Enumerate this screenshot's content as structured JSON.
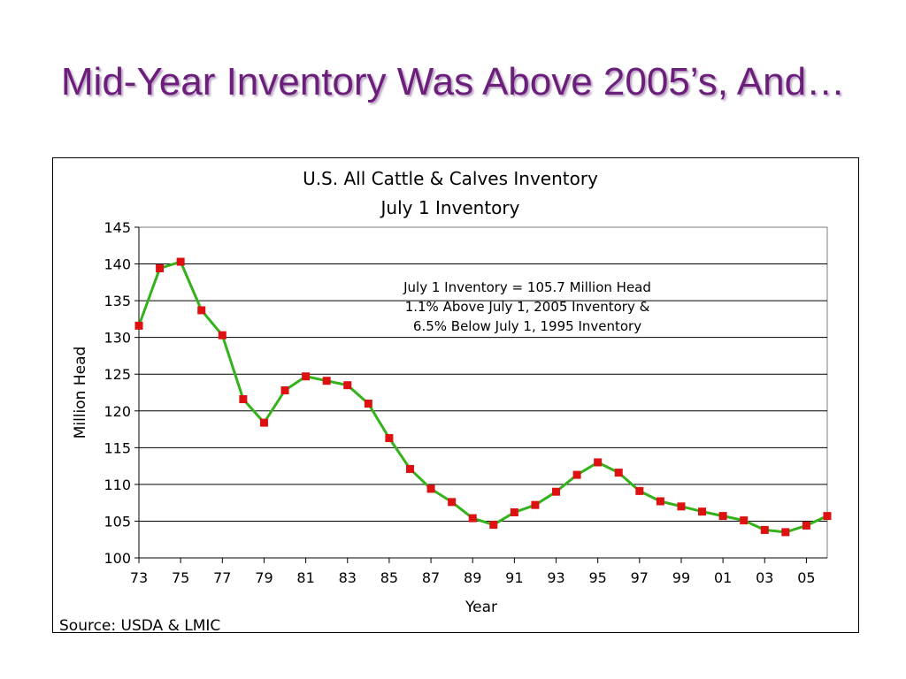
{
  "slide": {
    "title": "Mid-Year Inventory Was Above 2005’s, And…",
    "source": "Source: USDA & LMIC"
  },
  "chart_data": {
    "type": "line",
    "title": "U.S. All Cattle & Calves Inventory",
    "subtitle": "July 1 Inventory",
    "xlabel": "Year",
    "ylabel": "Million Head",
    "ylim": [
      100,
      145
    ],
    "yticks": [
      100,
      105,
      110,
      115,
      120,
      125,
      130,
      135,
      140,
      145
    ],
    "xlim": [
      1973,
      2006
    ],
    "xticks": [
      {
        "year": 1973,
        "label": "73"
      },
      {
        "year": 1975,
        "label": "75"
      },
      {
        "year": 1977,
        "label": "77"
      },
      {
        "year": 1979,
        "label": "79"
      },
      {
        "year": 1981,
        "label": "81"
      },
      {
        "year": 1983,
        "label": "83"
      },
      {
        "year": 1985,
        "label": "85"
      },
      {
        "year": 1987,
        "label": "87"
      },
      {
        "year": 1989,
        "label": "89"
      },
      {
        "year": 1991,
        "label": "91"
      },
      {
        "year": 1993,
        "label": "93"
      },
      {
        "year": 1995,
        "label": "95"
      },
      {
        "year": 1997,
        "label": "97"
      },
      {
        "year": 1999,
        "label": "99"
      },
      {
        "year": 2001,
        "label": "01"
      },
      {
        "year": 2003,
        "label": "03"
      },
      {
        "year": 2005,
        "label": "05"
      }
    ],
    "grid": "horizontal",
    "series": [
      {
        "x": [
          1973,
          1974,
          1975,
          1976,
          1977,
          1978,
          1979,
          1980,
          1981,
          1982,
          1983,
          1984,
          1985,
          1986,
          1987,
          1988,
          1989,
          1990,
          1991,
          1992,
          1993,
          1994,
          1995,
          1996,
          1997,
          1998,
          1999,
          2000,
          2001,
          2002,
          2003,
          2004,
          2005,
          2006
        ],
        "values": [
          131.6,
          139.4,
          140.3,
          133.7,
          130.3,
          121.6,
          118.4,
          122.8,
          124.7,
          124.1,
          123.5,
          121.0,
          116.3,
          112.1,
          109.4,
          107.6,
          105.4,
          104.5,
          106.2,
          107.2,
          109.0,
          111.3,
          113.0,
          111.6,
          109.1,
          107.7,
          107.0,
          106.3,
          105.7,
          105.1,
          103.8,
          103.5,
          104.4,
          105.7
        ],
        "line_color": "#33b21c",
        "marker_color": "#dd1111"
      }
    ],
    "annotation": [
      "July 1 Inventory = 105.7 Million Head",
      "1.1% Above July 1, 2005 Inventory &",
      "6.5% Below July 1, 1995 Inventory"
    ]
  }
}
